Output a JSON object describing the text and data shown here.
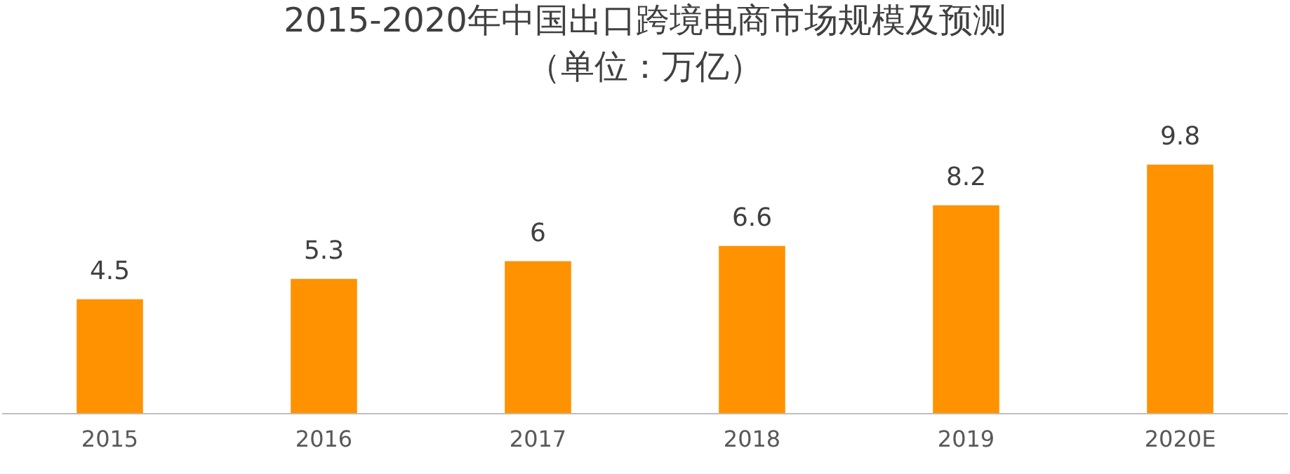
{
  "chart_data": {
    "type": "bar",
    "title": "2015-2020年中国出口跨境电商市场规模及预测",
    "subtitle": "（单位：万亿）",
    "categories": [
      "2015",
      "2016",
      "2017",
      "2018",
      "2019",
      "2020E"
    ],
    "values": [
      4.5,
      5.3,
      6,
      6.6,
      8.2,
      9.8
    ],
    "color": "#ff9200",
    "data_labels": true,
    "grid": false,
    "legend": false
  }
}
